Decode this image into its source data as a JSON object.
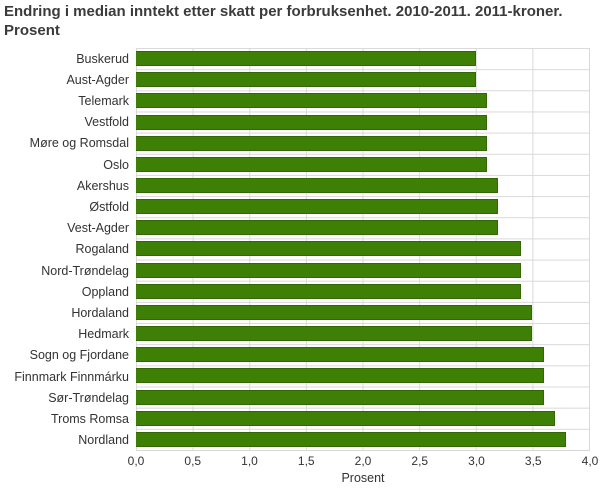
{
  "title_lines": [
    "Endring i median inntekt etter skatt per forbruksenhet. 2010-2011. 2011-kroner.",
    "Prosent"
  ],
  "chart_data": {
    "type": "bar",
    "orientation": "horizontal",
    "title": "Endring i median inntekt etter skatt per forbruksenhet. 2010-2011. 2011-kroner. Prosent",
    "categories": [
      "Buskerud",
      "Aust-Agder",
      "Telemark",
      "Vestfold",
      "Møre og Romsdal",
      "Oslo",
      "Akershus",
      "Østfold",
      "Vest-Agder",
      "Rogaland",
      "Nord-Trøndelag",
      "Oppland",
      "Hordaland",
      "Hedmark",
      "Sogn og Fjordane",
      "Finnmark Finnmárku",
      "Sør-Trøndelag",
      "Troms Romsa",
      "Nordland"
    ],
    "values": [
      3.0,
      3.0,
      3.1,
      3.1,
      3.1,
      3.1,
      3.2,
      3.2,
      3.2,
      3.4,
      3.4,
      3.4,
      3.5,
      3.5,
      3.6,
      3.6,
      3.6,
      3.7,
      3.8
    ],
    "xlabel": "Prosent",
    "ylabel": "",
    "xlim": [
      0,
      4
    ],
    "x_ticks": [
      "0,0",
      "0,5",
      "1,0",
      "1,5",
      "2,0",
      "2,5",
      "3,0",
      "3,5",
      "4,0"
    ],
    "grid": true,
    "legend": false,
    "bar_color": "#3e7f06",
    "bar_border_color": "#336703",
    "grid_color": "#d9d9d9",
    "title_color": "#3b3b3b",
    "text_color": "#333333"
  }
}
